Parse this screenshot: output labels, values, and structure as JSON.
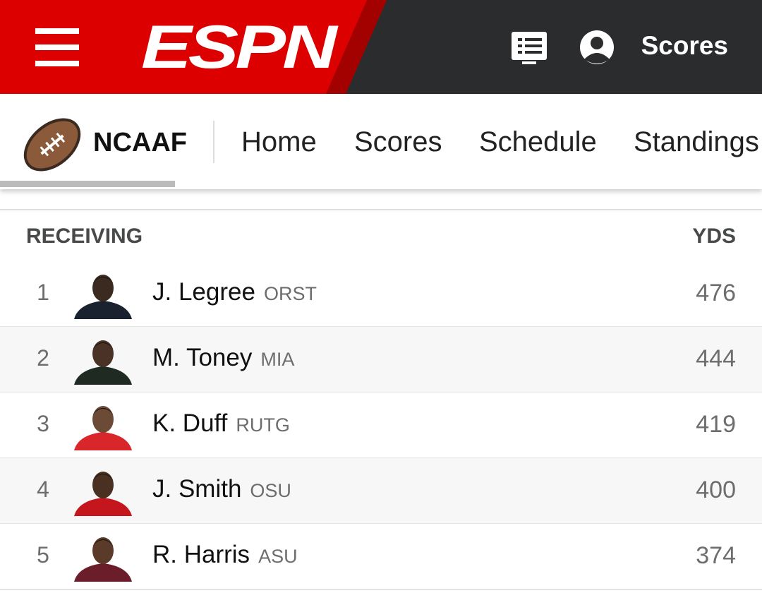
{
  "header": {
    "logo": "ESPN",
    "scores_link": "Scores"
  },
  "nav": {
    "league": "NCAAF",
    "links": [
      "Home",
      "Scores",
      "Schedule",
      "Standings"
    ]
  },
  "table": {
    "title": "RECEIVING",
    "stat": "YDS",
    "rows": [
      {
        "rank": 1,
        "name": "J. Legree",
        "team": "ORST",
        "yds": 476
      },
      {
        "rank": 2,
        "name": "M. Toney",
        "team": "MIA",
        "yds": 444
      },
      {
        "rank": 3,
        "name": "K. Duff",
        "team": "RUTG",
        "yds": 419
      },
      {
        "rank": 4,
        "name": "J. Smith",
        "team": "OSU",
        "yds": 400
      },
      {
        "rank": 5,
        "name": "R. Harris",
        "team": "ASU",
        "yds": 374
      }
    ]
  }
}
